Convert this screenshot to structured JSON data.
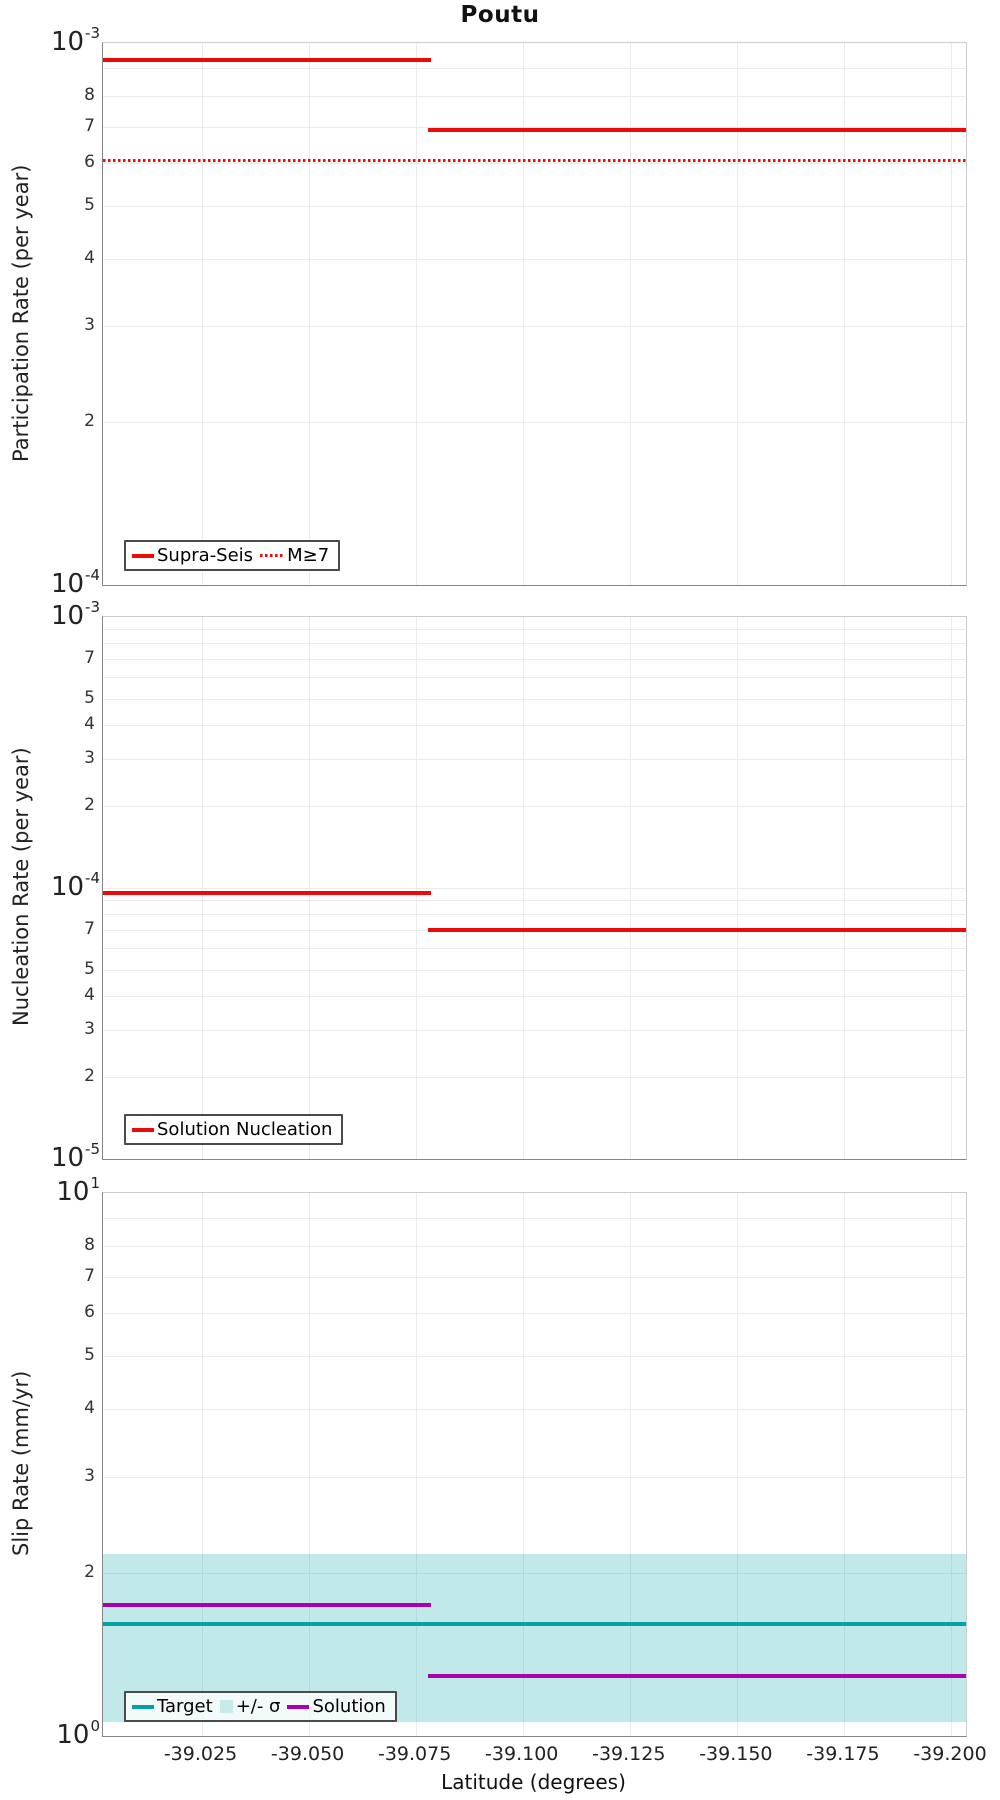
{
  "title": "Poutu",
  "xaxis": {
    "label": "Latitude (degrees)",
    "tick_labels": [
      "-39.025",
      "-39.050",
      "-39.075",
      "-39.100",
      "-39.125",
      "-39.150",
      "-39.175",
      "-39.200"
    ],
    "tick_values": [
      -39.025,
      -39.05,
      -39.075,
      -39.1,
      -39.125,
      -39.15,
      -39.175,
      -39.2
    ],
    "range": [
      -39.002,
      -39.2035
    ]
  },
  "colors": {
    "red": "#F10808",
    "teal": "#00A3A3",
    "purple": "#AA00B4",
    "band_visible": "#C7EBEB",
    "band_fill": "rgba(0,165,165,0.24)",
    "grid": "#ebebeb"
  },
  "chart_data": [
    {
      "type": "line",
      "panel": "participation-rate",
      "title": "Poutu",
      "xlabel": "Latitude (degrees)",
      "ylabel": "Participation Rate (per year)",
      "log_y": true,
      "ylim": [
        0.0001,
        0.001
      ],
      "xlim": [
        -39.002,
        -39.2035
      ],
      "grid": true,
      "series": [
        {
          "id": "supra-seis-line",
          "name": "Supra-Seis",
          "style": "solid",
          "color": "#F10808",
          "segments": [
            {
              "x1": -39.002,
              "x2": -39.0785,
              "y": 0.00093
            },
            {
              "x1": -39.078,
              "x2": -39.2035,
              "y": 0.00069
            }
          ]
        },
        {
          "id": "m-ge-7-line",
          "name": "M≥7",
          "style": "dotted",
          "color": "#F10808",
          "segments": [
            {
              "x1": -39.002,
              "x2": -39.2035,
              "y": 0.000607
            }
          ]
        }
      ],
      "legend": {
        "position": "bottom-left",
        "items": [
          {
            "id": "legend-supra-seis",
            "label": "Supra-Seis",
            "swatch": "line",
            "color": "#F10808"
          },
          {
            "id": "legend-m-ge-7",
            "label": "M≥7",
            "swatch": "dotted",
            "color": "#F10808"
          }
        ]
      },
      "yticks": {
        "decades": [
          {
            "exp": "-3",
            "value": 0.001
          },
          {
            "exp": "-4",
            "value": 0.0001
          }
        ],
        "digits": [
          {
            "label": "8",
            "value": 0.0008
          },
          {
            "label": "7",
            "value": 0.0007
          },
          {
            "label": "6",
            "value": 0.0006
          },
          {
            "label": "5",
            "value": 0.0005
          },
          {
            "label": "4",
            "value": 0.0004
          },
          {
            "label": "3",
            "value": 0.0003
          },
          {
            "label": "2",
            "value": 0.0002
          }
        ]
      }
    },
    {
      "type": "line",
      "panel": "nucleation-rate",
      "title": "Poutu",
      "xlabel": "Latitude (degrees)",
      "ylabel": "Nucleation Rate (per year)",
      "log_y": true,
      "ylim": [
        1e-05,
        0.001
      ],
      "xlim": [
        -39.002,
        -39.2035
      ],
      "grid": true,
      "series": [
        {
          "id": "solution-nucleation-line",
          "name": "Solution Nucleation",
          "style": "solid",
          "color": "#F10808",
          "segments": [
            {
              "x1": -39.002,
              "x2": -39.0785,
              "y": 9.6e-05
            },
            {
              "x1": -39.078,
              "x2": -39.2035,
              "y": 7e-05
            }
          ]
        }
      ],
      "legend": {
        "position": "bottom-left",
        "items": [
          {
            "id": "legend-solution-nucleation",
            "label": "Solution Nucleation",
            "swatch": "line",
            "color": "#F10808"
          }
        ]
      },
      "yticks": {
        "decades": [
          {
            "exp": "-3",
            "value": 0.001
          },
          {
            "exp": "-4",
            "value": 0.0001
          },
          {
            "exp": "-5",
            "value": 1e-05
          }
        ],
        "digits": [
          {
            "label": "7",
            "value": 0.0007
          },
          {
            "label": "5",
            "value": 0.0005
          },
          {
            "label": "4",
            "value": 0.0004
          },
          {
            "label": "3",
            "value": 0.0003
          },
          {
            "label": "2",
            "value": 0.0002
          },
          {
            "label": "7",
            "value": 7e-05
          },
          {
            "label": "5",
            "value": 5e-05
          },
          {
            "label": "4",
            "value": 4e-05
          },
          {
            "label": "3",
            "value": 3e-05
          },
          {
            "label": "2",
            "value": 2e-05
          }
        ]
      }
    },
    {
      "type": "line",
      "panel": "slip-rate",
      "title": "Poutu",
      "xlabel": "Latitude (degrees)",
      "ylabel": "Slip Rate (mm/yr)",
      "log_y": true,
      "ylim": [
        1,
        10
      ],
      "xlim": [
        -39.002,
        -39.2035
      ],
      "grid": true,
      "series": [
        {
          "id": "sigma-band",
          "name": "+/- σ",
          "style": "band",
          "color": "rgba(0,165,165,0.24)",
          "x1": -39.002,
          "x2": -39.2035,
          "y_low": 1.06,
          "y_high": 2.16
        },
        {
          "id": "target-line",
          "name": "Target",
          "style": "solid",
          "color": "#00A3A3",
          "segments": [
            {
              "x1": -39.002,
              "x2": -39.2035,
              "y": 1.61
            }
          ]
        },
        {
          "id": "solution-line",
          "name": "Solution",
          "style": "solid",
          "color": "#AA00B4",
          "segments": [
            {
              "x1": -39.002,
              "x2": -39.0785,
              "y": 1.74
            },
            {
              "x1": -39.078,
              "x2": -39.2035,
              "y": 1.29
            }
          ]
        }
      ],
      "legend": {
        "position": "bottom-left",
        "items": [
          {
            "id": "legend-target",
            "label": "Target",
            "swatch": "line",
            "color": "#00A3A3"
          },
          {
            "id": "legend-sigma",
            "label": "+/- σ",
            "swatch": "patch",
            "color": "#C7EBEB"
          },
          {
            "id": "legend-solution",
            "label": "Solution",
            "swatch": "line",
            "color": "#AA00B4"
          }
        ]
      },
      "yticks": {
        "decades": [
          {
            "exp": "1",
            "value": 10
          },
          {
            "exp": "0",
            "value": 1
          }
        ],
        "digits": [
          {
            "label": "8",
            "value": 8
          },
          {
            "label": "7",
            "value": 7
          },
          {
            "label": "6",
            "value": 6
          },
          {
            "label": "5",
            "value": 5
          },
          {
            "label": "4",
            "value": 4
          },
          {
            "label": "3",
            "value": 3
          },
          {
            "label": "2",
            "value": 2
          }
        ]
      }
    }
  ]
}
